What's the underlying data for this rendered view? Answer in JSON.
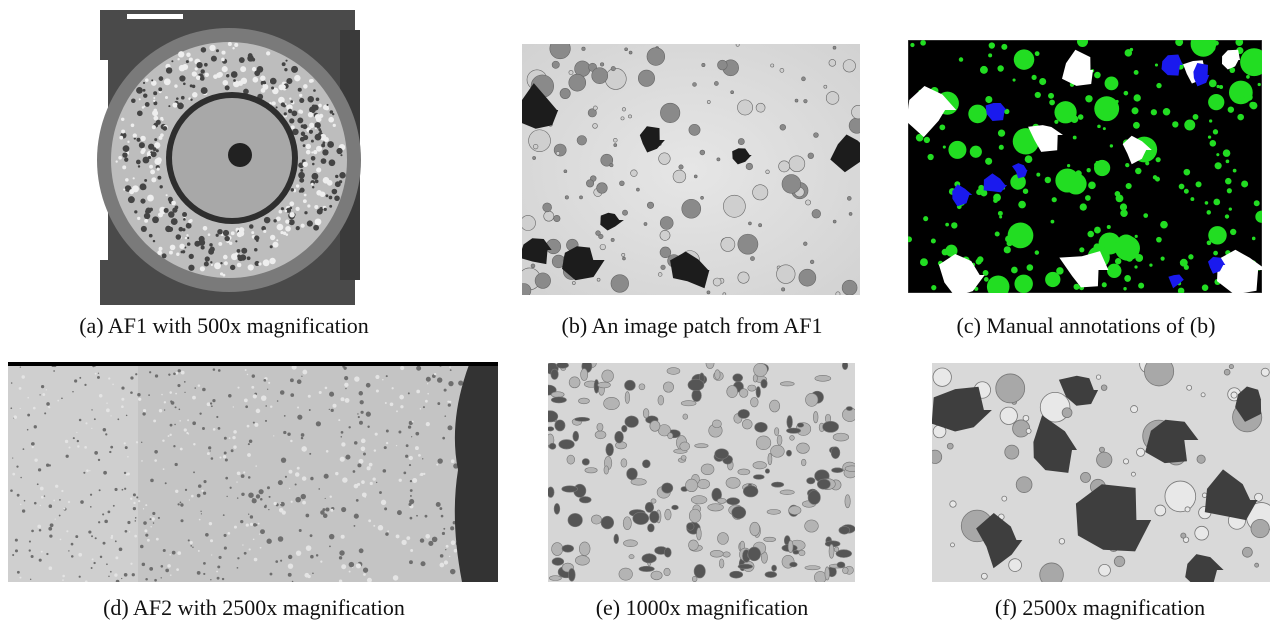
{
  "figure": {
    "panels": [
      {
        "caption": "(a) AF1 with 500x magnification"
      },
      {
        "caption": "(b) An image patch from AF1"
      },
      {
        "caption": "(c) Manual annotations of (b)"
      },
      {
        "caption": "(d) AF2 with 2500x magnification"
      },
      {
        "caption": "(e) 1000x magnification"
      },
      {
        "caption": "(f) 2500x magnification"
      }
    ]
  }
}
